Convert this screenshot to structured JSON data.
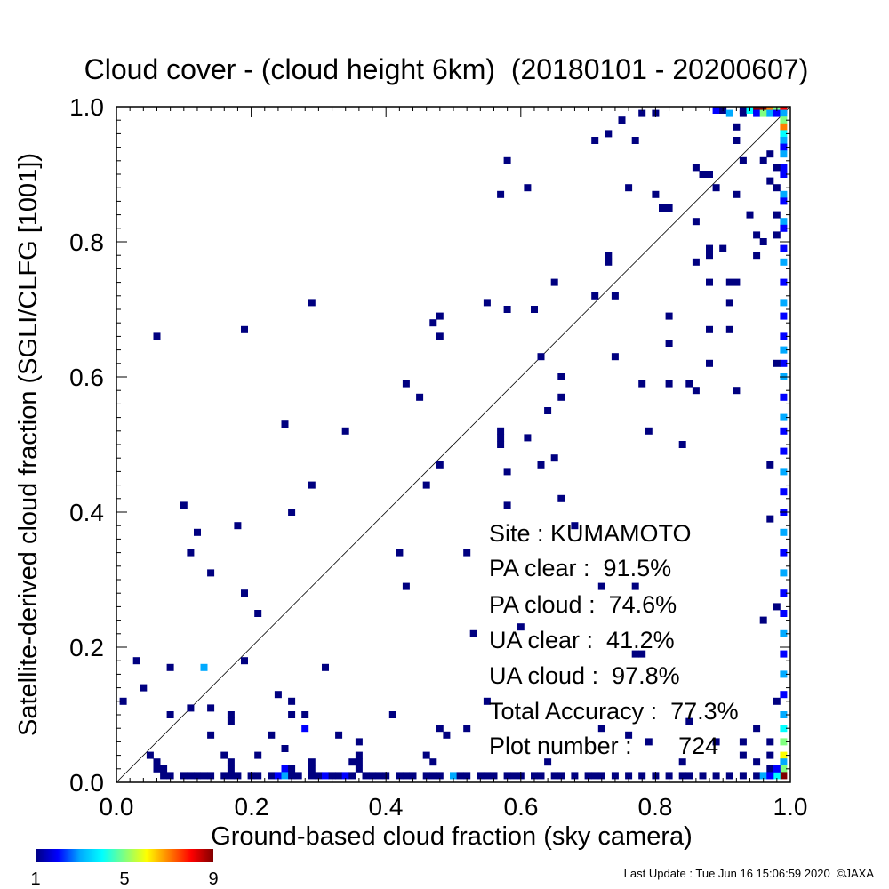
{
  "chart_data": {
    "type": "heatmap",
    "title": "Cloud cover - (cloud height 6km)  (20180101 - 20200607)",
    "xlabel": "Ground-based cloud fraction (sky camera)",
    "ylabel": "Satellite-derived cloud fraction (SGLI/CLFG [1001])",
    "xlim": [
      0.0,
      1.0
    ],
    "ylim": [
      0.0,
      1.0
    ],
    "x_ticks": [
      "0.0",
      "0.2",
      "0.4",
      "0.6",
      "0.8",
      "1.0"
    ],
    "y_ticks": [
      "0.0",
      "0.2",
      "0.4",
      "0.6",
      "0.8",
      "1.0"
    ],
    "reference_line": "1:1 diagonal",
    "stats": {
      "site": "Site : KUMAMOTO",
      "pa_clear": "PA clear :  91.5%",
      "pa_cloud": "PA cloud :  74.6%",
      "ua_clear": "UA clear :  41.2%",
      "ua_cloud": "UA cloud :  97.8%",
      "total_accuracy": "Total Accuracy :  77.3%",
      "plot_number": "Plot number :       724"
    },
    "colorbar": {
      "min": 1,
      "max": 9,
      "labels": [
        "1",
        "5",
        "9"
      ],
      "colors": [
        "#000080",
        "#0000ff",
        "#00aaff",
        "#00ffff",
        "#80ff80",
        "#ffff00",
        "#ff8000",
        "#ff0000",
        "#800000"
      ]
    },
    "points": [
      [
        0.06,
        0.66
      ],
      [
        0.19,
        0.67
      ],
      [
        0.29,
        0.71
      ],
      [
        0.25,
        0.53
      ],
      [
        0.34,
        0.52
      ],
      [
        0.29,
        0.44
      ],
      [
        0.26,
        0.4
      ],
      [
        0.1,
        0.41
      ],
      [
        0.12,
        0.37
      ],
      [
        0.18,
        0.38
      ],
      [
        0.11,
        0.34
      ],
      [
        0.14,
        0.31
      ],
      [
        0.19,
        0.28
      ],
      [
        0.21,
        0.25
      ],
      [
        0.03,
        0.18
      ],
      [
        0.08,
        0.17
      ],
      [
        0.13,
        0.17,
        3
      ],
      [
        0.19,
        0.18
      ],
      [
        0.31,
        0.17
      ],
      [
        0.04,
        0.14
      ],
      [
        0.01,
        0.12
      ],
      [
        0.08,
        0.1
      ],
      [
        0.11,
        0.11
      ],
      [
        0.14,
        0.11
      ],
      [
        0.17,
        0.1
      ],
      [
        0.17,
        0.09
      ],
      [
        0.24,
        0.13
      ],
      [
        0.26,
        0.12
      ],
      [
        0.26,
        0.1
      ],
      [
        0.28,
        0.1
      ],
      [
        0.28,
        0.08,
        2
      ],
      [
        0.23,
        0.07
      ],
      [
        0.25,
        0.05
      ],
      [
        0.14,
        0.07
      ],
      [
        0.16,
        0.04
      ],
      [
        0.21,
        0.04
      ],
      [
        0.33,
        0.07
      ],
      [
        0.36,
        0.06
      ],
      [
        0.36,
        0.04
      ],
      [
        0.41,
        0.1
      ],
      [
        0.46,
        0.04
      ],
      [
        0.47,
        0.03
      ],
      [
        0.48,
        0.08
      ],
      [
        0.49,
        0.07
      ],
      [
        0.52,
        0.08
      ],
      [
        0.05,
        0.04
      ],
      [
        0.06,
        0.03
      ],
      [
        0.06,
        0.02
      ],
      [
        0.07,
        0.02
      ],
      [
        0.17,
        0.03
      ],
      [
        0.17,
        0.02
      ],
      [
        0.25,
        0.02,
        2
      ],
      [
        0.26,
        0.02
      ],
      [
        0.29,
        0.03
      ],
      [
        0.29,
        0.02
      ],
      [
        0.35,
        0.03
      ],
      [
        0.36,
        0.03
      ],
      [
        0.36,
        0.02
      ],
      [
        0.38,
        0.01
      ],
      [
        0.43,
        0.59
      ],
      [
        0.45,
        0.57
      ],
      [
        0.42,
        0.34
      ],
      [
        0.43,
        0.29
      ],
      [
        0.46,
        0.44
      ],
      [
        0.48,
        0.47
      ],
      [
        0.47,
        0.68
      ],
      [
        0.48,
        0.69
      ],
      [
        0.48,
        0.66
      ],
      [
        0.55,
        0.71
      ],
      [
        0.57,
        0.87
      ],
      [
        0.58,
        0.92
      ],
      [
        0.61,
        0.88
      ],
      [
        0.58,
        0.7
      ],
      [
        0.62,
        0.7
      ],
      [
        0.65,
        0.74
      ],
      [
        0.63,
        0.63
      ],
      [
        0.66,
        0.6
      ],
      [
        0.66,
        0.57
      ],
      [
        0.64,
        0.55
      ],
      [
        0.57,
        0.52
      ],
      [
        0.57,
        0.51
      ],
      [
        0.57,
        0.5
      ],
      [
        0.61,
        0.51
      ],
      [
        0.58,
        0.46
      ],
      [
        0.63,
        0.47
      ],
      [
        0.65,
        0.48
      ],
      [
        0.66,
        0.42
      ],
      [
        0.58,
        0.41
      ],
      [
        0.52,
        0.34
      ],
      [
        0.53,
        0.22
      ],
      [
        0.55,
        0.12
      ],
      [
        0.71,
        0.95
      ],
      [
        0.73,
        0.96
      ],
      [
        0.75,
        0.98
      ],
      [
        0.77,
        0.95
      ],
      [
        0.78,
        0.99
      ],
      [
        0.8,
        0.99
      ],
      [
        0.76,
        0.88
      ],
      [
        0.8,
        0.87
      ],
      [
        0.81,
        0.85
      ],
      [
        0.82,
        0.85
      ],
      [
        0.71,
        0.72
      ],
      [
        0.74,
        0.72
      ],
      [
        0.73,
        0.78
      ],
      [
        0.73,
        0.77
      ],
      [
        0.74,
        0.63
      ],
      [
        0.78,
        0.59
      ],
      [
        0.79,
        0.52
      ],
      [
        0.82,
        0.59
      ],
      [
        0.82,
        0.65
      ],
      [
        0.82,
        0.69
      ],
      [
        0.84,
        0.5
      ],
      [
        0.85,
        0.59
      ],
      [
        0.86,
        0.58
      ],
      [
        0.86,
        0.77
      ],
      [
        0.86,
        0.83
      ],
      [
        0.88,
        0.62
      ],
      [
        0.88,
        0.67
      ],
      [
        0.88,
        0.74
      ],
      [
        0.88,
        0.78
      ],
      [
        0.88,
        0.79
      ],
      [
        0.89,
        0.88
      ],
      [
        0.9,
        0.79
      ],
      [
        0.91,
        0.74
      ],
      [
        0.91,
        0.71
      ],
      [
        0.91,
        0.67
      ],
      [
        0.92,
        0.74
      ],
      [
        0.92,
        0.58
      ],
      [
        0.92,
        0.87
      ],
      [
        0.92,
        0.95
      ],
      [
        0.92,
        0.97
      ],
      [
        0.93,
        0.92
      ],
      [
        0.93,
        0.99
      ],
      [
        0.94,
        0.84
      ],
      [
        0.95,
        0.81
      ],
      [
        0.95,
        0.78
      ],
      [
        0.96,
        0.8
      ],
      [
        0.96,
        0.92
      ],
      [
        0.97,
        0.93
      ],
      [
        0.97,
        0.89
      ],
      [
        0.97,
        0.47
      ],
      [
        0.97,
        0.39
      ],
      [
        0.96,
        0.24
      ],
      [
        0.88,
        0.9
      ],
      [
        0.86,
        0.91
      ],
      [
        0.87,
        0.9
      ],
      [
        0.68,
        0.38
      ],
      [
        0.72,
        0.29
      ],
      [
        0.77,
        0.29
      ],
      [
        0.77,
        0.19
      ],
      [
        0.78,
        0.19
      ],
      [
        0.6,
        0.23
      ],
      [
        0.64,
        0.03
      ],
      [
        0.72,
        0.08
      ],
      [
        0.76,
        0.07
      ],
      [
        0.84,
        0.03
      ],
      [
        0.79,
        0.06
      ],
      [
        0.85,
        0.09
      ],
      [
        0.89,
        0.06
      ],
      [
        0.93,
        0.04
      ],
      [
        0.93,
        0.06
      ],
      [
        0.95,
        0.08
      ],
      [
        0.97,
        0.06
      ],
      [
        0.97,
        0.04
      ],
      [
        0.97,
        0.02
      ],
      [
        0.95,
        0.03
      ],
      [
        0.89,
        1.0,
        2
      ],
      [
        0.9,
        1.0
      ],
      [
        0.91,
        0.99,
        3
      ],
      [
        0.93,
        1.0
      ],
      [
        0.94,
        1.0,
        4
      ],
      [
        0.95,
        1.0,
        9
      ],
      [
        0.96,
        1.0,
        9
      ],
      [
        0.97,
        1.0,
        7
      ],
      [
        0.98,
        1.0,
        5
      ],
      [
        0.99,
        1.0,
        8
      ],
      [
        0.95,
        0.99,
        2
      ],
      [
        0.96,
        0.99,
        5
      ],
      [
        0.97,
        0.99,
        3
      ],
      [
        0.98,
        0.99,
        2
      ],
      [
        0.99,
        0.99,
        3
      ],
      [
        0.99,
        0.98,
        5
      ],
      [
        0.99,
        0.97,
        7
      ],
      [
        0.99,
        0.96,
        4
      ],
      [
        0.99,
        0.95,
        3
      ],
      [
        0.99,
        0.94,
        2
      ],
      [
        0.99,
        0.93,
        3
      ],
      [
        0.99,
        0.91,
        2
      ],
      [
        0.99,
        0.9,
        2
      ],
      [
        0.99,
        0.87,
        3
      ],
      [
        0.99,
        0.86,
        2
      ],
      [
        0.99,
        0.83,
        3
      ],
      [
        0.99,
        0.82,
        2
      ],
      [
        0.99,
        0.79,
        2
      ],
      [
        0.99,
        0.77,
        3
      ],
      [
        0.99,
        0.74,
        2
      ],
      [
        0.99,
        0.71,
        3
      ],
      [
        0.99,
        0.69,
        2
      ],
      [
        0.99,
        0.66,
        2
      ],
      [
        0.99,
        0.64,
        3
      ],
      [
        0.99,
        0.62,
        2
      ],
      [
        0.99,
        0.6,
        3
      ],
      [
        0.99,
        0.57,
        2
      ],
      [
        0.99,
        0.54,
        3
      ],
      [
        0.99,
        0.52,
        2
      ],
      [
        0.99,
        0.49,
        2
      ],
      [
        0.99,
        0.46,
        3
      ],
      [
        0.99,
        0.43,
        2
      ],
      [
        0.99,
        0.4,
        2
      ],
      [
        0.99,
        0.37,
        3
      ],
      [
        0.99,
        0.34,
        2
      ],
      [
        0.99,
        0.31,
        3
      ],
      [
        0.99,
        0.28,
        2
      ],
      [
        0.99,
        0.25,
        2
      ],
      [
        0.99,
        0.22,
        3
      ],
      [
        0.99,
        0.19,
        2
      ],
      [
        0.99,
        0.16,
        3
      ],
      [
        0.99,
        0.13,
        2
      ],
      [
        0.99,
        0.1,
        3
      ],
      [
        0.99,
        0.08,
        4
      ],
      [
        0.99,
        0.06,
        5
      ],
      [
        0.99,
        0.04,
        6
      ],
      [
        0.99,
        0.03,
        3
      ],
      [
        0.99,
        0.02,
        5
      ],
      [
        0.99,
        0.01,
        9
      ],
      [
        0.98,
        0.01,
        4
      ],
      [
        0.98,
        0.02,
        2
      ],
      [
        0.98,
        0.91
      ],
      [
        0.98,
        0.88
      ],
      [
        0.98,
        0.84
      ],
      [
        0.98,
        0.81
      ],
      [
        0.98,
        0.62
      ],
      [
        0.98,
        0.26
      ],
      [
        0.98,
        0.12
      ],
      [
        0.07,
        0.01
      ],
      [
        0.08,
        0.01
      ],
      [
        0.1,
        0.01
      ],
      [
        0.11,
        0.01
      ],
      [
        0.12,
        0.01
      ],
      [
        0.13,
        0.01
      ],
      [
        0.14,
        0.01
      ],
      [
        0.16,
        0.01
      ],
      [
        0.17,
        0.01
      ],
      [
        0.18,
        0.01
      ],
      [
        0.2,
        0.01
      ],
      [
        0.21,
        0.01
      ],
      [
        0.23,
        0.01
      ],
      [
        0.24,
        0.01,
        2
      ],
      [
        0.25,
        0.01,
        3
      ],
      [
        0.26,
        0.01
      ],
      [
        0.27,
        0.01
      ],
      [
        0.29,
        0.01
      ],
      [
        0.3,
        0.01
      ],
      [
        0.31,
        0.01,
        2
      ],
      [
        0.32,
        0.01
      ],
      [
        0.33,
        0.01
      ],
      [
        0.34,
        0.01,
        2
      ],
      [
        0.35,
        0.01
      ],
      [
        0.37,
        0.01
      ],
      [
        0.39,
        0.01
      ],
      [
        0.4,
        0.01
      ],
      [
        0.42,
        0.01
      ],
      [
        0.43,
        0.01
      ],
      [
        0.44,
        0.01
      ],
      [
        0.46,
        0.01
      ],
      [
        0.47,
        0.01
      ],
      [
        0.48,
        0.01
      ],
      [
        0.5,
        0.01,
        3
      ],
      [
        0.51,
        0.01
      ],
      [
        0.52,
        0.01
      ],
      [
        0.54,
        0.01
      ],
      [
        0.55,
        0.01
      ],
      [
        0.56,
        0.01
      ],
      [
        0.58,
        0.01
      ],
      [
        0.59,
        0.01
      ],
      [
        0.6,
        0.01
      ],
      [
        0.62,
        0.01
      ],
      [
        0.63,
        0.01
      ],
      [
        0.65,
        0.01
      ],
      [
        0.66,
        0.01
      ],
      [
        0.68,
        0.01
      ],
      [
        0.7,
        0.01
      ],
      [
        0.71,
        0.01
      ],
      [
        0.72,
        0.01
      ],
      [
        0.74,
        0.01
      ],
      [
        0.76,
        0.01
      ],
      [
        0.78,
        0.01
      ],
      [
        0.8,
        0.01
      ],
      [
        0.82,
        0.01
      ],
      [
        0.84,
        0.01
      ],
      [
        0.85,
        0.01
      ],
      [
        0.87,
        0.01
      ],
      [
        0.89,
        0.01
      ],
      [
        0.91,
        0.01
      ],
      [
        0.93,
        0.01
      ],
      [
        0.95,
        0.01
      ],
      [
        0.96,
        0.01,
        3
      ],
      [
        0.97,
        0.01,
        2
      ]
    ]
  },
  "footer": {
    "last_update": "Last Update : Tue Jun 16 15:06:59 2020  ©JAXA"
  }
}
